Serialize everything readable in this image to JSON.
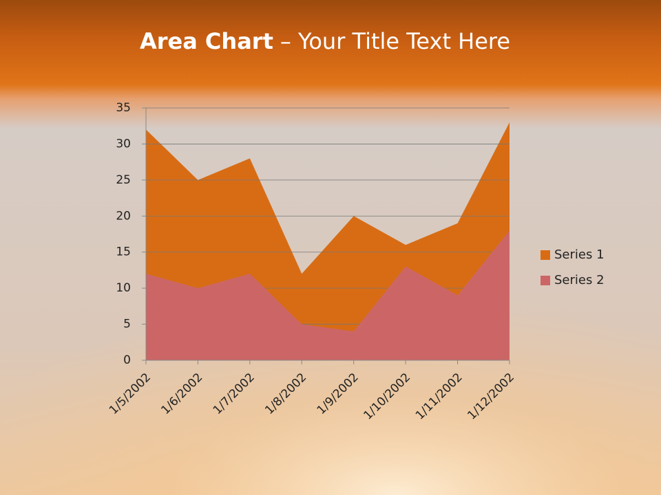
{
  "chart_data": {
    "type": "area",
    "title": "Area Chart",
    "title_rest": "– Your Title Text Here",
    "categories": [
      "1/5/2002",
      "1/6/2002",
      "1/7/2002",
      "1/8/2002",
      "1/9/2002",
      "1/10/2002",
      "1/11/2002",
      "1/12/2002"
    ],
    "series": [
      {
        "name": "Series 1",
        "color": "#d86c14",
        "values": [
          32,
          25,
          28,
          12,
          20,
          16,
          19,
          33
        ]
      },
      {
        "name": "Series 2",
        "color": "#cc6666",
        "values": [
          12,
          10,
          12,
          5,
          4,
          13,
          9,
          18
        ]
      }
    ],
    "ylim": [
      0,
      35
    ],
    "yticks": [
      0,
      5,
      10,
      15,
      20,
      25,
      30,
      35
    ],
    "grid": true,
    "legend": "right"
  }
}
